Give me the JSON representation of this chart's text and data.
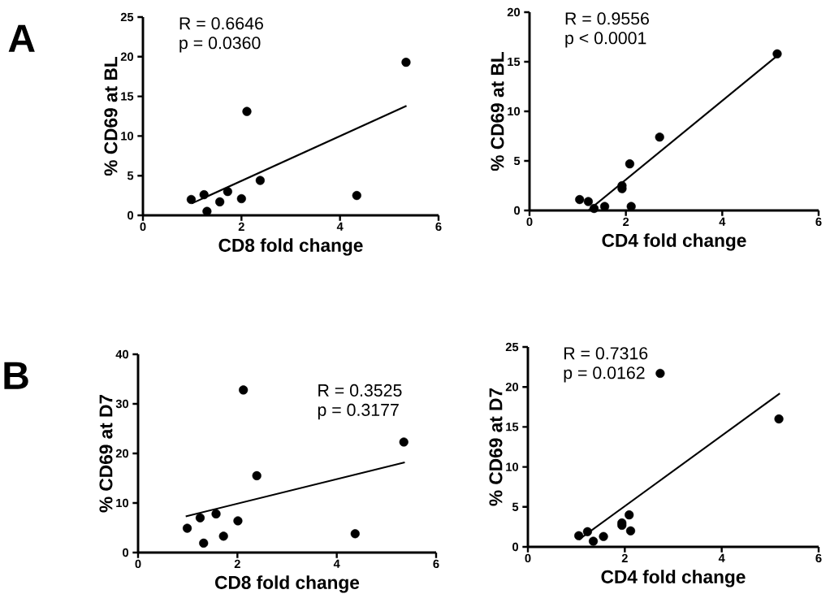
{
  "chart_data": [
    {
      "type": "scatter",
      "title": "A",
      "xlabel": "CD8 fold change",
      "ylabel": "% CD69 at BL",
      "annotations": [
        "R = 0.6646",
        "p = 0.0360"
      ],
      "xlim": [
        0,
        6
      ],
      "ylim": [
        0,
        25
      ],
      "xticks": [
        0,
        2,
        4,
        6
      ],
      "yticks": [
        0,
        5,
        10,
        15,
        20,
        25
      ],
      "series": [
        {
          "marker": "circle",
          "color": "#000000",
          "x": [
            0.98,
            1.24,
            1.3,
            1.56,
            1.72,
            2.0,
            2.11,
            2.38,
            4.34,
            5.34
          ],
          "values": [
            2.0,
            2.6,
            0.5,
            1.7,
            3.0,
            2.1,
            13.1,
            4.4,
            2.5,
            19.3
          ]
        },
        {
          "type": "line",
          "marker": "none",
          "color": "#000000",
          "x": [
            0.99,
            5.35
          ],
          "values": [
            1.5,
            13.8
          ]
        }
      ]
    },
    {
      "type": "scatter",
      "xlabel": "CD4 fold change",
      "ylabel": "% CD69 at BL",
      "annotations": [
        "R = 0.9556",
        "p < 0.0001"
      ],
      "xlim": [
        0,
        6
      ],
      "ylim": [
        0,
        20
      ],
      "xticks": [
        0,
        2,
        4,
        6
      ],
      "yticks": [
        0,
        5,
        10,
        15,
        20
      ],
      "series": [
        {
          "marker": "circle",
          "color": "#000000",
          "x": [
            1.04,
            1.22,
            1.34,
            1.56,
            1.92,
            1.92,
            2.08,
            2.11,
            2.7,
            5.14
          ],
          "values": [
            1.1,
            0.9,
            0.2,
            0.4,
            2.5,
            2.2,
            4.7,
            0.4,
            7.4,
            15.8
          ]
        },
        {
          "type": "line",
          "marker": "none",
          "color": "#000000",
          "x": [
            1.22,
            5.14
          ],
          "values": [
            0,
            15.6
          ]
        }
      ]
    },
    {
      "type": "scatter",
      "title": "B",
      "xlabel": "CD8 fold change",
      "ylabel": "% CD69 at D7",
      "annotations": [
        "R = 0.3525",
        "p = 0.3177"
      ],
      "xlim": [
        0,
        6
      ],
      "ylim": [
        0,
        40
      ],
      "xticks": [
        0,
        2,
        4,
        6
      ],
      "yticks": [
        0,
        10,
        20,
        30,
        40
      ],
      "series": [
        {
          "marker": "circle",
          "color": "#000000",
          "x": [
            0.99,
            1.25,
            1.32,
            1.57,
            1.72,
            2.01,
            2.12,
            2.39,
            4.37,
            5.35
          ],
          "values": [
            4.9,
            7.0,
            1.9,
            7.8,
            3.3,
            6.4,
            32.8,
            15.5,
            3.8,
            22.3
          ]
        },
        {
          "type": "line",
          "marker": "none",
          "color": "#000000",
          "x": [
            0.96,
            5.37
          ],
          "values": [
            7.3,
            18.2
          ]
        }
      ]
    },
    {
      "type": "scatter",
      "xlabel": "CD4 fold change",
      "ylabel": "% CD69 at D7",
      "annotations": [
        "R = 0.7316",
        "p = 0.0162"
      ],
      "xlim": [
        0,
        6
      ],
      "ylim": [
        0,
        25
      ],
      "xticks": [
        0,
        2,
        4,
        6
      ],
      "yticks": [
        0,
        5,
        10,
        15,
        20,
        25
      ],
      "series": [
        {
          "marker": "circle",
          "color": "#000000",
          "x": [
            1.05,
            1.23,
            1.35,
            1.56,
            1.94,
            1.94,
            2.09,
            2.12,
            2.73,
            5.18
          ],
          "values": [
            1.4,
            1.9,
            0.7,
            1.3,
            3.0,
            2.7,
            4.0,
            2.0,
            21.7,
            16.0
          ]
        },
        {
          "type": "line",
          "marker": "none",
          "color": "#000000",
          "x": [
            1.05,
            5.2
          ],
          "values": [
            0.9,
            19.2
          ]
        }
      ]
    }
  ]
}
